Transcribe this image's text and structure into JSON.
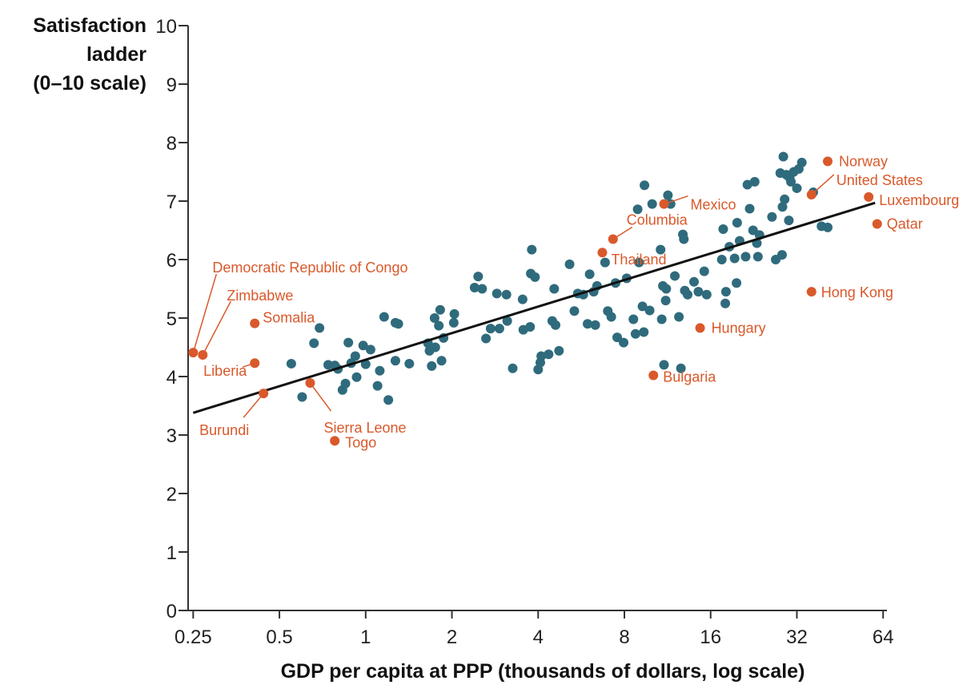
{
  "chart_data": {
    "type": "scatter",
    "title": "",
    "ylabel_lines": [
      "Satisfaction",
      "ladder",
      "(0–10 scale)"
    ],
    "xlabel": "GDP per capita at PPP (thousands of dollars, log scale)",
    "x_scale": "log2",
    "xlim": [
      0.24,
      66
    ],
    "ylim": [
      0,
      10
    ],
    "x_ticks": [
      0.25,
      0.5,
      1,
      2,
      4,
      8,
      16,
      32,
      64
    ],
    "x_tick_labels": [
      "0.25",
      "0.5",
      "1",
      "2",
      "4",
      "8",
      "16",
      "32",
      "64"
    ],
    "y_ticks": [
      0,
      1,
      2,
      3,
      4,
      5,
      6,
      7,
      8,
      9,
      10
    ],
    "y_tick_labels": [
      "0",
      "1",
      "2",
      "3",
      "4",
      "5",
      "6",
      "7",
      "8",
      "9",
      "10"
    ],
    "grid": false,
    "colors": {
      "countries": "#2f6b7c",
      "highlighted": "#d9592b",
      "trend": "#111111",
      "axis": "#333333"
    },
    "trend_line": {
      "x": [
        0.25,
        60
      ],
      "y": [
        3.38,
        6.97
      ]
    },
    "highlighted": [
      {
        "label": "Democratic Republic of Congo",
        "x": 0.25,
        "y": 4.41
      },
      {
        "label": "Zimbabwe",
        "x": 0.27,
        "y": 4.37
      },
      {
        "label": "Somalia",
        "x": 0.41,
        "y": 4.91
      },
      {
        "label": "Liberia",
        "x": 0.41,
        "y": 4.23
      },
      {
        "label": "Burundi",
        "x": 0.44,
        "y": 3.71
      },
      {
        "label": "Sierra Leone",
        "x": 0.64,
        "y": 3.89
      },
      {
        "label": "Togo",
        "x": 0.78,
        "y": 2.9
      },
      {
        "label": "Mexico",
        "x": 11.0,
        "y": 6.95
      },
      {
        "label": "Columbia",
        "x": 7.3,
        "y": 6.35
      },
      {
        "label": "Thailand",
        "x": 6.7,
        "y": 6.12
      },
      {
        "label": "Hungary",
        "x": 14.7,
        "y": 4.83
      },
      {
        "label": "Bulgaria",
        "x": 10.1,
        "y": 4.02
      },
      {
        "label": "Norway",
        "x": 41.0,
        "y": 7.68
      },
      {
        "label": "United States",
        "x": 36.0,
        "y": 7.11
      },
      {
        "label": "Luxembourg",
        "x": 57.0,
        "y": 7.07
      },
      {
        "label": "Qatar",
        "x": 61.0,
        "y": 6.61
      },
      {
        "label": "Hong Kong",
        "x": 36.0,
        "y": 5.45
      }
    ],
    "countries": [
      {
        "x": 0.55,
        "y": 4.22
      },
      {
        "x": 0.6,
        "y": 3.65
      },
      {
        "x": 0.66,
        "y": 4.57
      },
      {
        "x": 0.69,
        "y": 4.83
      },
      {
        "x": 0.74,
        "y": 4.2
      },
      {
        "x": 0.78,
        "y": 4.19
      },
      {
        "x": 0.8,
        "y": 4.13
      },
      {
        "x": 0.83,
        "y": 3.77
      },
      {
        "x": 0.85,
        "y": 3.88
      },
      {
        "x": 0.87,
        "y": 4.58
      },
      {
        "x": 0.89,
        "y": 4.23
      },
      {
        "x": 0.92,
        "y": 4.35
      },
      {
        "x": 0.93,
        "y": 3.99
      },
      {
        "x": 0.98,
        "y": 4.53
      },
      {
        "x": 1.0,
        "y": 4.21
      },
      {
        "x": 1.04,
        "y": 4.46
      },
      {
        "x": 1.1,
        "y": 3.84
      },
      {
        "x": 1.12,
        "y": 4.1
      },
      {
        "x": 1.16,
        "y": 5.02
      },
      {
        "x": 1.2,
        "y": 3.6
      },
      {
        "x": 1.27,
        "y": 4.92
      },
      {
        "x": 1.3,
        "y": 4.9
      },
      {
        "x": 1.27,
        "y": 4.27
      },
      {
        "x": 1.42,
        "y": 4.22
      },
      {
        "x": 1.65,
        "y": 4.57
      },
      {
        "x": 1.67,
        "y": 4.44
      },
      {
        "x": 1.7,
        "y": 4.18
      },
      {
        "x": 1.74,
        "y": 5.0
      },
      {
        "x": 1.75,
        "y": 4.5
      },
      {
        "x": 1.8,
        "y": 4.87
      },
      {
        "x": 1.82,
        "y": 5.14
      },
      {
        "x": 1.84,
        "y": 4.27
      },
      {
        "x": 1.87,
        "y": 4.66
      },
      {
        "x": 2.03,
        "y": 4.92
      },
      {
        "x": 2.04,
        "y": 5.07
      },
      {
        "x": 2.4,
        "y": 5.52
      },
      {
        "x": 2.47,
        "y": 5.71
      },
      {
        "x": 2.55,
        "y": 5.5
      },
      {
        "x": 2.63,
        "y": 4.65
      },
      {
        "x": 2.73,
        "y": 4.82
      },
      {
        "x": 2.87,
        "y": 5.42
      },
      {
        "x": 2.93,
        "y": 4.82
      },
      {
        "x": 3.1,
        "y": 5.4
      },
      {
        "x": 3.12,
        "y": 4.95
      },
      {
        "x": 3.26,
        "y": 4.14
      },
      {
        "x": 3.53,
        "y": 5.32
      },
      {
        "x": 3.55,
        "y": 4.8
      },
      {
        "x": 3.75,
        "y": 4.85
      },
      {
        "x": 3.77,
        "y": 5.76
      },
      {
        "x": 3.8,
        "y": 6.17
      },
      {
        "x": 3.9,
        "y": 5.7
      },
      {
        "x": 4.0,
        "y": 4.12
      },
      {
        "x": 4.07,
        "y": 4.24
      },
      {
        "x": 4.1,
        "y": 4.35
      },
      {
        "x": 4.35,
        "y": 4.38
      },
      {
        "x": 4.48,
        "y": 4.95
      },
      {
        "x": 4.55,
        "y": 5.5
      },
      {
        "x": 4.6,
        "y": 4.88
      },
      {
        "x": 4.73,
        "y": 4.44
      },
      {
        "x": 5.15,
        "y": 5.92
      },
      {
        "x": 5.35,
        "y": 5.12
      },
      {
        "x": 5.5,
        "y": 5.42
      },
      {
        "x": 5.75,
        "y": 5.4
      },
      {
        "x": 5.95,
        "y": 4.9
      },
      {
        "x": 6.05,
        "y": 5.75
      },
      {
        "x": 6.33,
        "y": 4.88
      },
      {
        "x": 6.25,
        "y": 5.45
      },
      {
        "x": 6.42,
        "y": 5.55
      },
      {
        "x": 6.85,
        "y": 5.95
      },
      {
        "x": 7.0,
        "y": 5.12
      },
      {
        "x": 7.2,
        "y": 5.02
      },
      {
        "x": 7.45,
        "y": 5.6
      },
      {
        "x": 7.55,
        "y": 4.67
      },
      {
        "x": 7.95,
        "y": 4.58
      },
      {
        "x": 8.15,
        "y": 5.68
      },
      {
        "x": 8.6,
        "y": 4.98
      },
      {
        "x": 8.75,
        "y": 4.73
      },
      {
        "x": 8.9,
        "y": 6.86
      },
      {
        "x": 9.0,
        "y": 5.95
      },
      {
        "x": 9.25,
        "y": 5.2
      },
      {
        "x": 9.35,
        "y": 4.76
      },
      {
        "x": 9.4,
        "y": 7.27
      },
      {
        "x": 9.8,
        "y": 5.13
      },
      {
        "x": 10.0,
        "y": 6.95
      },
      {
        "x": 10.7,
        "y": 6.17
      },
      {
        "x": 10.8,
        "y": 4.98
      },
      {
        "x": 10.9,
        "y": 5.55
      },
      {
        "x": 11.0,
        "y": 4.2
      },
      {
        "x": 11.15,
        "y": 5.3
      },
      {
        "x": 11.2,
        "y": 5.5
      },
      {
        "x": 11.35,
        "y": 7.1
      },
      {
        "x": 11.6,
        "y": 6.95
      },
      {
        "x": 12.0,
        "y": 5.72
      },
      {
        "x": 12.4,
        "y": 5.02
      },
      {
        "x": 12.6,
        "y": 4.14
      },
      {
        "x": 12.8,
        "y": 6.43
      },
      {
        "x": 12.9,
        "y": 6.35
      },
      {
        "x": 13.0,
        "y": 5.47
      },
      {
        "x": 13.3,
        "y": 5.4
      },
      {
        "x": 14.0,
        "y": 5.62
      },
      {
        "x": 14.5,
        "y": 5.45
      },
      {
        "x": 15.2,
        "y": 5.8
      },
      {
        "x": 15.5,
        "y": 5.4
      },
      {
        "x": 17.5,
        "y": 6.0
      },
      {
        "x": 17.7,
        "y": 6.52
      },
      {
        "x": 18.0,
        "y": 5.25
      },
      {
        "x": 18.1,
        "y": 5.45
      },
      {
        "x": 18.6,
        "y": 6.22
      },
      {
        "x": 19.4,
        "y": 6.02
      },
      {
        "x": 19.7,
        "y": 5.6
      },
      {
        "x": 19.8,
        "y": 6.63
      },
      {
        "x": 20.2,
        "y": 6.32
      },
      {
        "x": 21.2,
        "y": 6.05
      },
      {
        "x": 21.5,
        "y": 7.28
      },
      {
        "x": 21.9,
        "y": 6.87
      },
      {
        "x": 22.5,
        "y": 6.5
      },
      {
        "x": 22.8,
        "y": 7.33
      },
      {
        "x": 23.2,
        "y": 6.28
      },
      {
        "x": 23.4,
        "y": 6.05
      },
      {
        "x": 23.7,
        "y": 6.42
      },
      {
        "x": 26.2,
        "y": 6.73
      },
      {
        "x": 27.0,
        "y": 6.0
      },
      {
        "x": 28.0,
        "y": 7.48
      },
      {
        "x": 28.4,
        "y": 6.08
      },
      {
        "x": 28.5,
        "y": 6.9
      },
      {
        "x": 28.7,
        "y": 7.76
      },
      {
        "x": 29.0,
        "y": 7.03
      },
      {
        "x": 29.4,
        "y": 7.45
      },
      {
        "x": 30.0,
        "y": 6.67
      },
      {
        "x": 30.2,
        "y": 7.4
      },
      {
        "x": 30.5,
        "y": 7.33
      },
      {
        "x": 31.2,
        "y": 7.5
      },
      {
        "x": 32.0,
        "y": 7.22
      },
      {
        "x": 32.5,
        "y": 7.55
      },
      {
        "x": 33.3,
        "y": 7.66
      },
      {
        "x": 36.5,
        "y": 7.15
      },
      {
        "x": 39.0,
        "y": 6.57
      },
      {
        "x": 41.0,
        "y": 6.55
      }
    ]
  }
}
